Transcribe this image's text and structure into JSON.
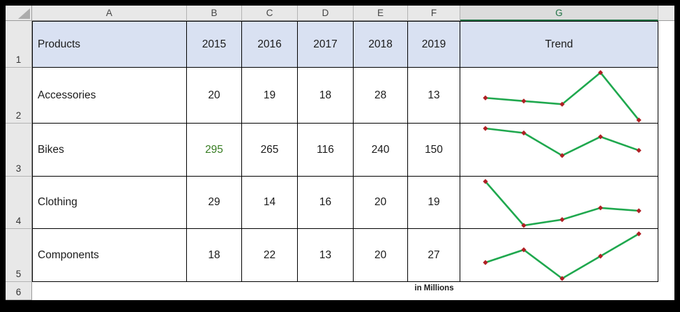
{
  "sheet": {
    "column_headers": [
      "A",
      "B",
      "C",
      "D",
      "E",
      "F",
      "G"
    ],
    "selected_column": "G",
    "row_headers": [
      "1",
      "2",
      "3",
      "4",
      "5",
      "6"
    ]
  },
  "table": {
    "product_header": "Products",
    "year_headers": [
      "2015",
      "2016",
      "2017",
      "2018",
      "2019"
    ],
    "trend_header": "Trend",
    "rows": [
      {
        "product": "Accessories",
        "values": [
          20,
          19,
          18,
          28,
          13
        ]
      },
      {
        "product": "Bikes",
        "values": [
          295,
          265,
          116,
          240,
          150
        ]
      },
      {
        "product": "Clothing",
        "values": [
          29,
          14,
          16,
          20,
          19
        ]
      },
      {
        "product": "Components",
        "values": [
          18,
          22,
          13,
          20,
          27
        ]
      }
    ],
    "footnote": "in Millions"
  },
  "sparklines": {
    "line_color": "#1FA84E",
    "marker_color": "#B02025",
    "axis_min_overrides": {
      "1": 0
    }
  },
  "colors": {
    "header_row_fill": "#D9E1F2",
    "selected_column_green": "#217346",
    "bikes_2015_text": "#377D22",
    "table_border": "#000000"
  },
  "chart_data": [
    {
      "type": "line",
      "title": "Accessories trend sparkline",
      "x": [
        "2015",
        "2016",
        "2017",
        "2018",
        "2019"
      ],
      "values": [
        20,
        19,
        18,
        28,
        13
      ]
    },
    {
      "type": "line",
      "title": "Bikes trend sparkline",
      "x": [
        "2015",
        "2016",
        "2017",
        "2018",
        "2019"
      ],
      "values": [
        295,
        265,
        116,
        240,
        150
      ],
      "ylim": [
        0,
        295
      ]
    },
    {
      "type": "line",
      "title": "Clothing trend sparkline",
      "x": [
        "2015",
        "2016",
        "2017",
        "2018",
        "2019"
      ],
      "values": [
        29,
        14,
        16,
        20,
        19
      ]
    },
    {
      "type": "line",
      "title": "Components trend sparkline",
      "x": [
        "2015",
        "2016",
        "2017",
        "2018",
        "2019"
      ],
      "values": [
        18,
        22,
        13,
        20,
        27
      ]
    }
  ]
}
